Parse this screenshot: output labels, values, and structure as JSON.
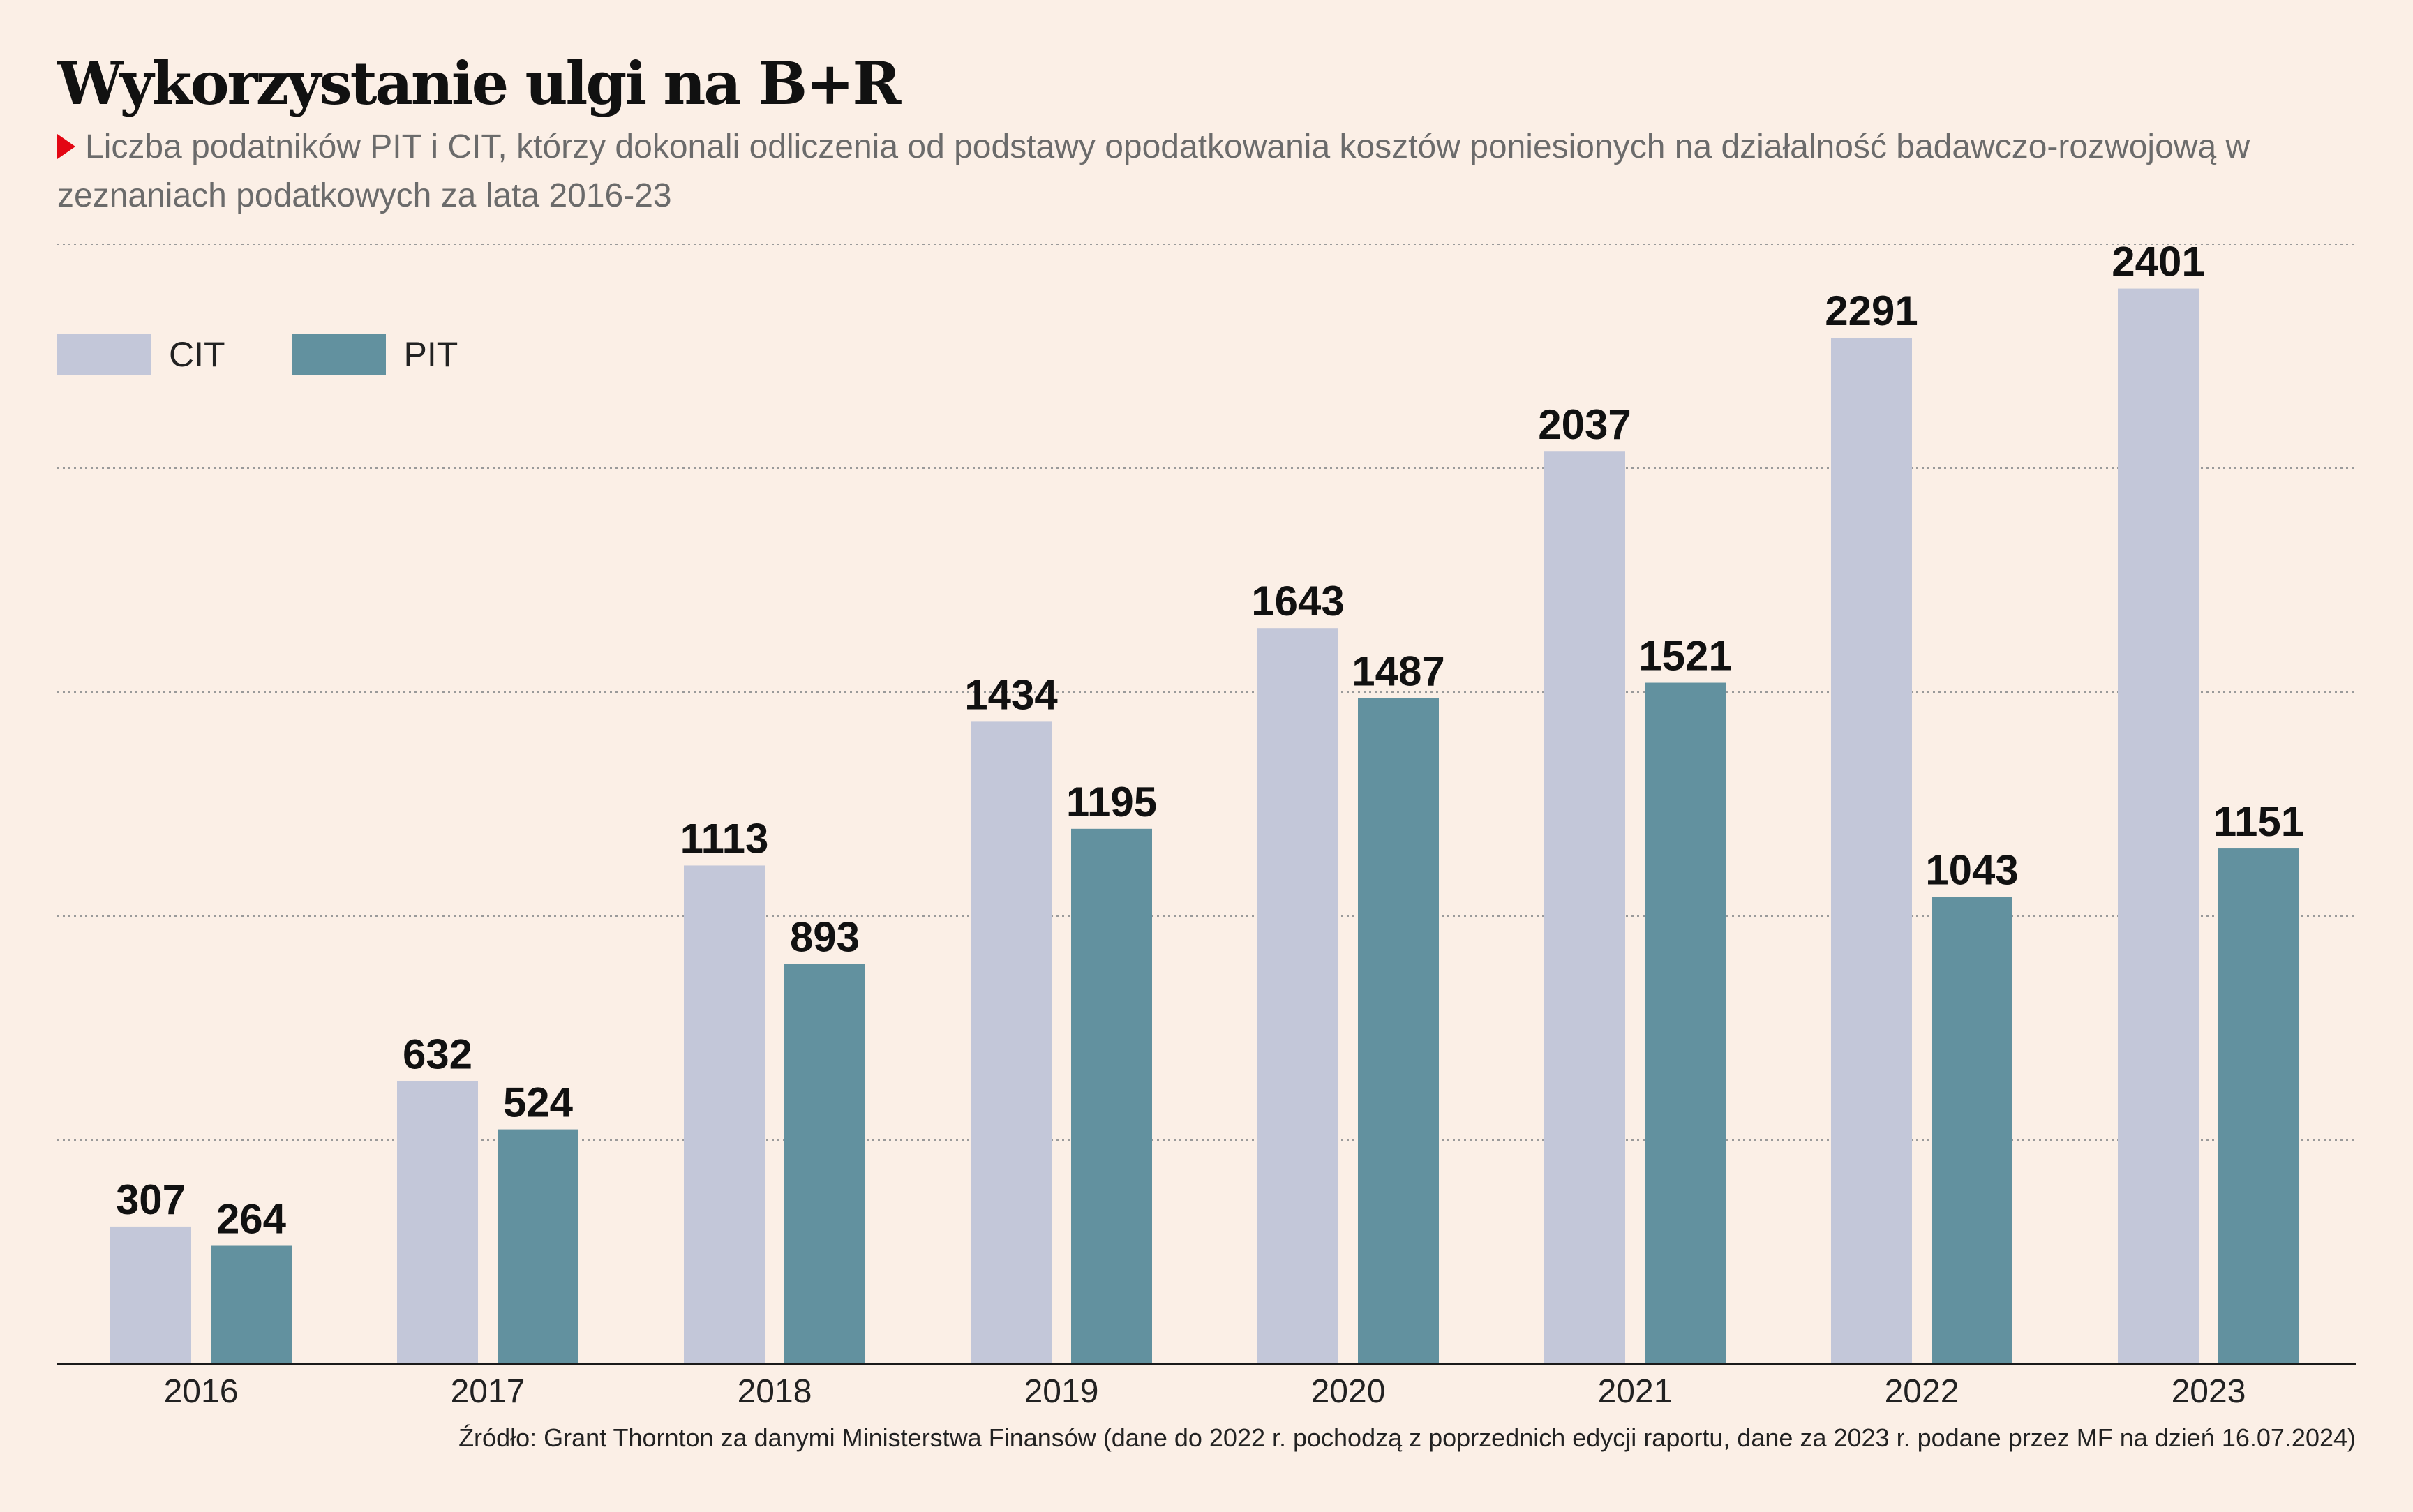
{
  "title": "Wykorzystanie ulgi na B+R",
  "subtitle": "Liczba podatników PIT i CIT, którzy dokonali odliczenia od podstawy opodatkowania kosztów poniesionych na działalność badawczo-rozwojową w zeznaniach podatkowych za lata 2016-23",
  "source": "Źródło: Grant Thornton za danymi Ministerstwa Finansów (dane do 2022 r. pochodzą z poprzednich edycji raportu, dane za 2023 r. podane przez MF na dzień 16.07.2024)",
  "colors": {
    "background": "#fbefe6",
    "cit": "#c3c7d9",
    "pit": "#62919f",
    "accent": "#e30613"
  },
  "chart_data": {
    "type": "bar",
    "title": "Wykorzystanie ulgi na B+R",
    "categories": [
      "2016",
      "2017",
      "2018",
      "2019",
      "2020",
      "2021",
      "2022",
      "2023"
    ],
    "series": [
      {
        "name": "CIT",
        "values": [
          307,
          632,
          1113,
          1434,
          1643,
          2037,
          2291,
          2401
        ]
      },
      {
        "name": "PIT",
        "values": [
          264,
          524,
          893,
          1195,
          1487,
          1521,
          1043,
          1151
        ]
      }
    ],
    "ylim": [
      0,
      2500
    ],
    "xlabel": "",
    "ylabel": "",
    "grid": true,
    "legend_position": "top-left"
  }
}
